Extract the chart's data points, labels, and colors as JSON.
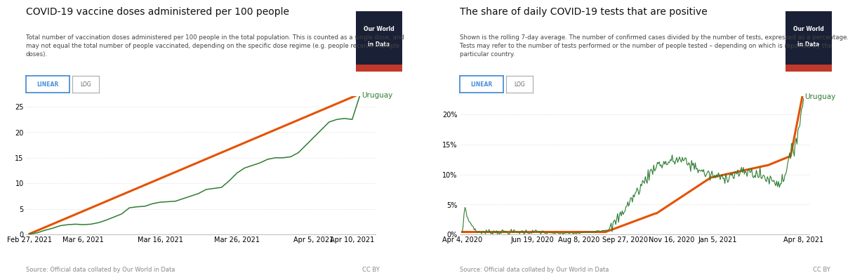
{
  "left_chart": {
    "title": "COVID-19 vaccine doses administered per 100 people",
    "subtitle_lines": [
      "Total number of vaccination doses administered per 100 people in the total population. This is counted as a single dose, and",
      "may not equal the total number of people vaccinated, depending on the specific dose regime (e.g. people receive multiple",
      "doses)."
    ],
    "source": "Source: Official data collated by Our World in Data",
    "yticks": [
      0,
      5,
      10,
      15,
      20,
      25
    ],
    "xtick_labels": [
      "Feb 27, 2021",
      "Mar 6, 2021",
      "Mar 16, 2021",
      "Mar 26, 2021",
      "Apr 5, 2021",
      "Apr 10, 2021"
    ],
    "country_label": "Uruguay",
    "line_color": "#2e7d32",
    "smooth_color": "#e65100",
    "background": "#ffffff",
    "ylim_max": 27
  },
  "right_chart": {
    "title": "The share of daily COVID-19 tests that are positive",
    "subtitle_lines": [
      "Shown is the rolling 7-day average. The number of confirmed cases divided by the number of tests, expressed as a percentage.",
      "Tests may refer to the number of tests performed or the number of people tested – depending on which is reported by the",
      "particular country."
    ],
    "source": "Source: Official data collated by Our World in Data",
    "ytick_vals": [
      0,
      5,
      10,
      15,
      20
    ],
    "ytick_labels": [
      "0%",
      "5%",
      "10%",
      "15%",
      "20%"
    ],
    "xtick_labels": [
      "Apr 4, 2020",
      "Jun 19, 2020",
      "Aug 8, 2020",
      "Sep 27, 2020",
      "Nov 16, 2020",
      "Jan 5, 2021",
      "Apr 8, 2021"
    ],
    "country_label": "Uruguay",
    "line_color": "#2e7d32",
    "smooth_color": "#e65100",
    "background": "#ffffff",
    "ylim_max": 23
  },
  "owid_bg": "#1a1a2e",
  "owid_red": "#c0392b",
  "owid_text": "#ffffff",
  "button_border": "#4a90d9",
  "button_text": "#4a90d9",
  "log_border": "#aaaaaa",
  "log_text": "#666666",
  "grid_color": "#cccccc",
  "source_color": "#888888"
}
